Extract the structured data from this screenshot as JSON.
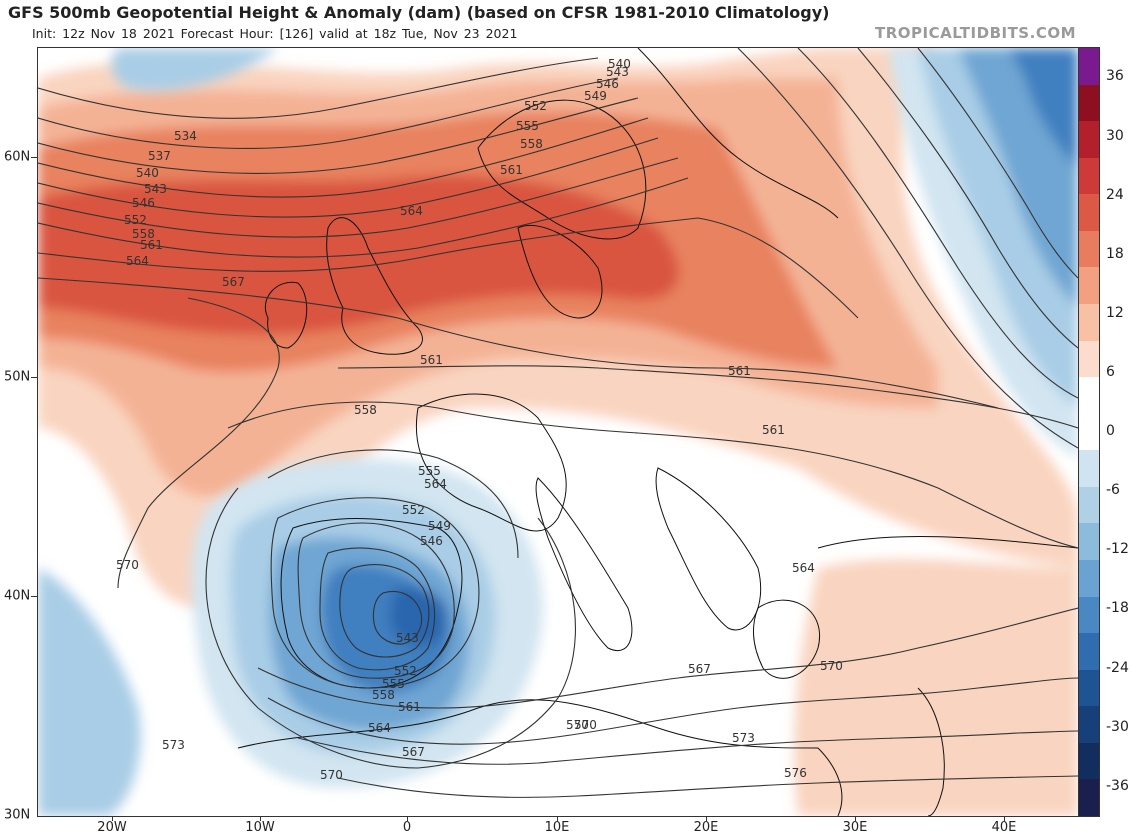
{
  "header": {
    "title": "GFS 500mb Geopotential Height & Anomaly (dam) (based on CFSR 1981-2010 Climatology)",
    "subtitle": "Init: 12z Nov 18 2021   Forecast Hour: [126]   valid at 18z Tue, Nov 23 2021",
    "brand": "TROPICALTIDBITS.COM"
  },
  "axes": {
    "lat_labels": [
      "60N",
      "50N",
      "40N",
      "30N"
    ],
    "lon_labels": [
      "20W",
      "10W",
      "0",
      "10E",
      "20E",
      "30E",
      "40E"
    ]
  },
  "colorbar": {
    "labels": [
      "36",
      "30",
      "24",
      "18",
      "12",
      "6",
      "0",
      "-6",
      "-12",
      "-18",
      "-24",
      "-30",
      "-36"
    ],
    "colors": [
      "#7b1a8e",
      "#8e1020",
      "#b31f2a",
      "#cd3a38",
      "#dc5a45",
      "#e87c5e",
      "#f2a080",
      "#f8c1a6",
      "#fbdccd",
      "#ffffff",
      "#ffffff",
      "#cfe3f0",
      "#b0d0e6",
      "#8dbbdc",
      "#6aa3d1",
      "#4a88c3",
      "#2f6cb0",
      "#1f5494",
      "#17407a",
      "#122e5e",
      "#1a1f4e"
    ]
  },
  "contour_labels": [
    "534",
    "537",
    "540",
    "543",
    "546",
    "552",
    "558",
    "561",
    "564",
    "567",
    "564",
    "561",
    "561",
    "561",
    "558",
    "555",
    "552",
    "549",
    "546",
    "543",
    "540",
    "543",
    "546",
    "549",
    "552",
    "555",
    "558",
    "561",
    "564",
    "552",
    "555",
    "558",
    "561",
    "564",
    "567",
    "570",
    "570",
    "573",
    "573",
    "570",
    "567",
    "564",
    "570",
    "576",
    "570"
  ],
  "map_colors": {
    "warm_strong": "#d9553f",
    "warm_mid": "#e8825f",
    "warm_light": "#f4b295",
    "warm_pale": "#f9d4c0",
    "cool_pale": "#d2e5f1",
    "cool_light": "#a9cde6",
    "cool_mid": "#6fa6d3",
    "cool_strong": "#3f7fc0",
    "cool_core": "#2b66ad"
  }
}
